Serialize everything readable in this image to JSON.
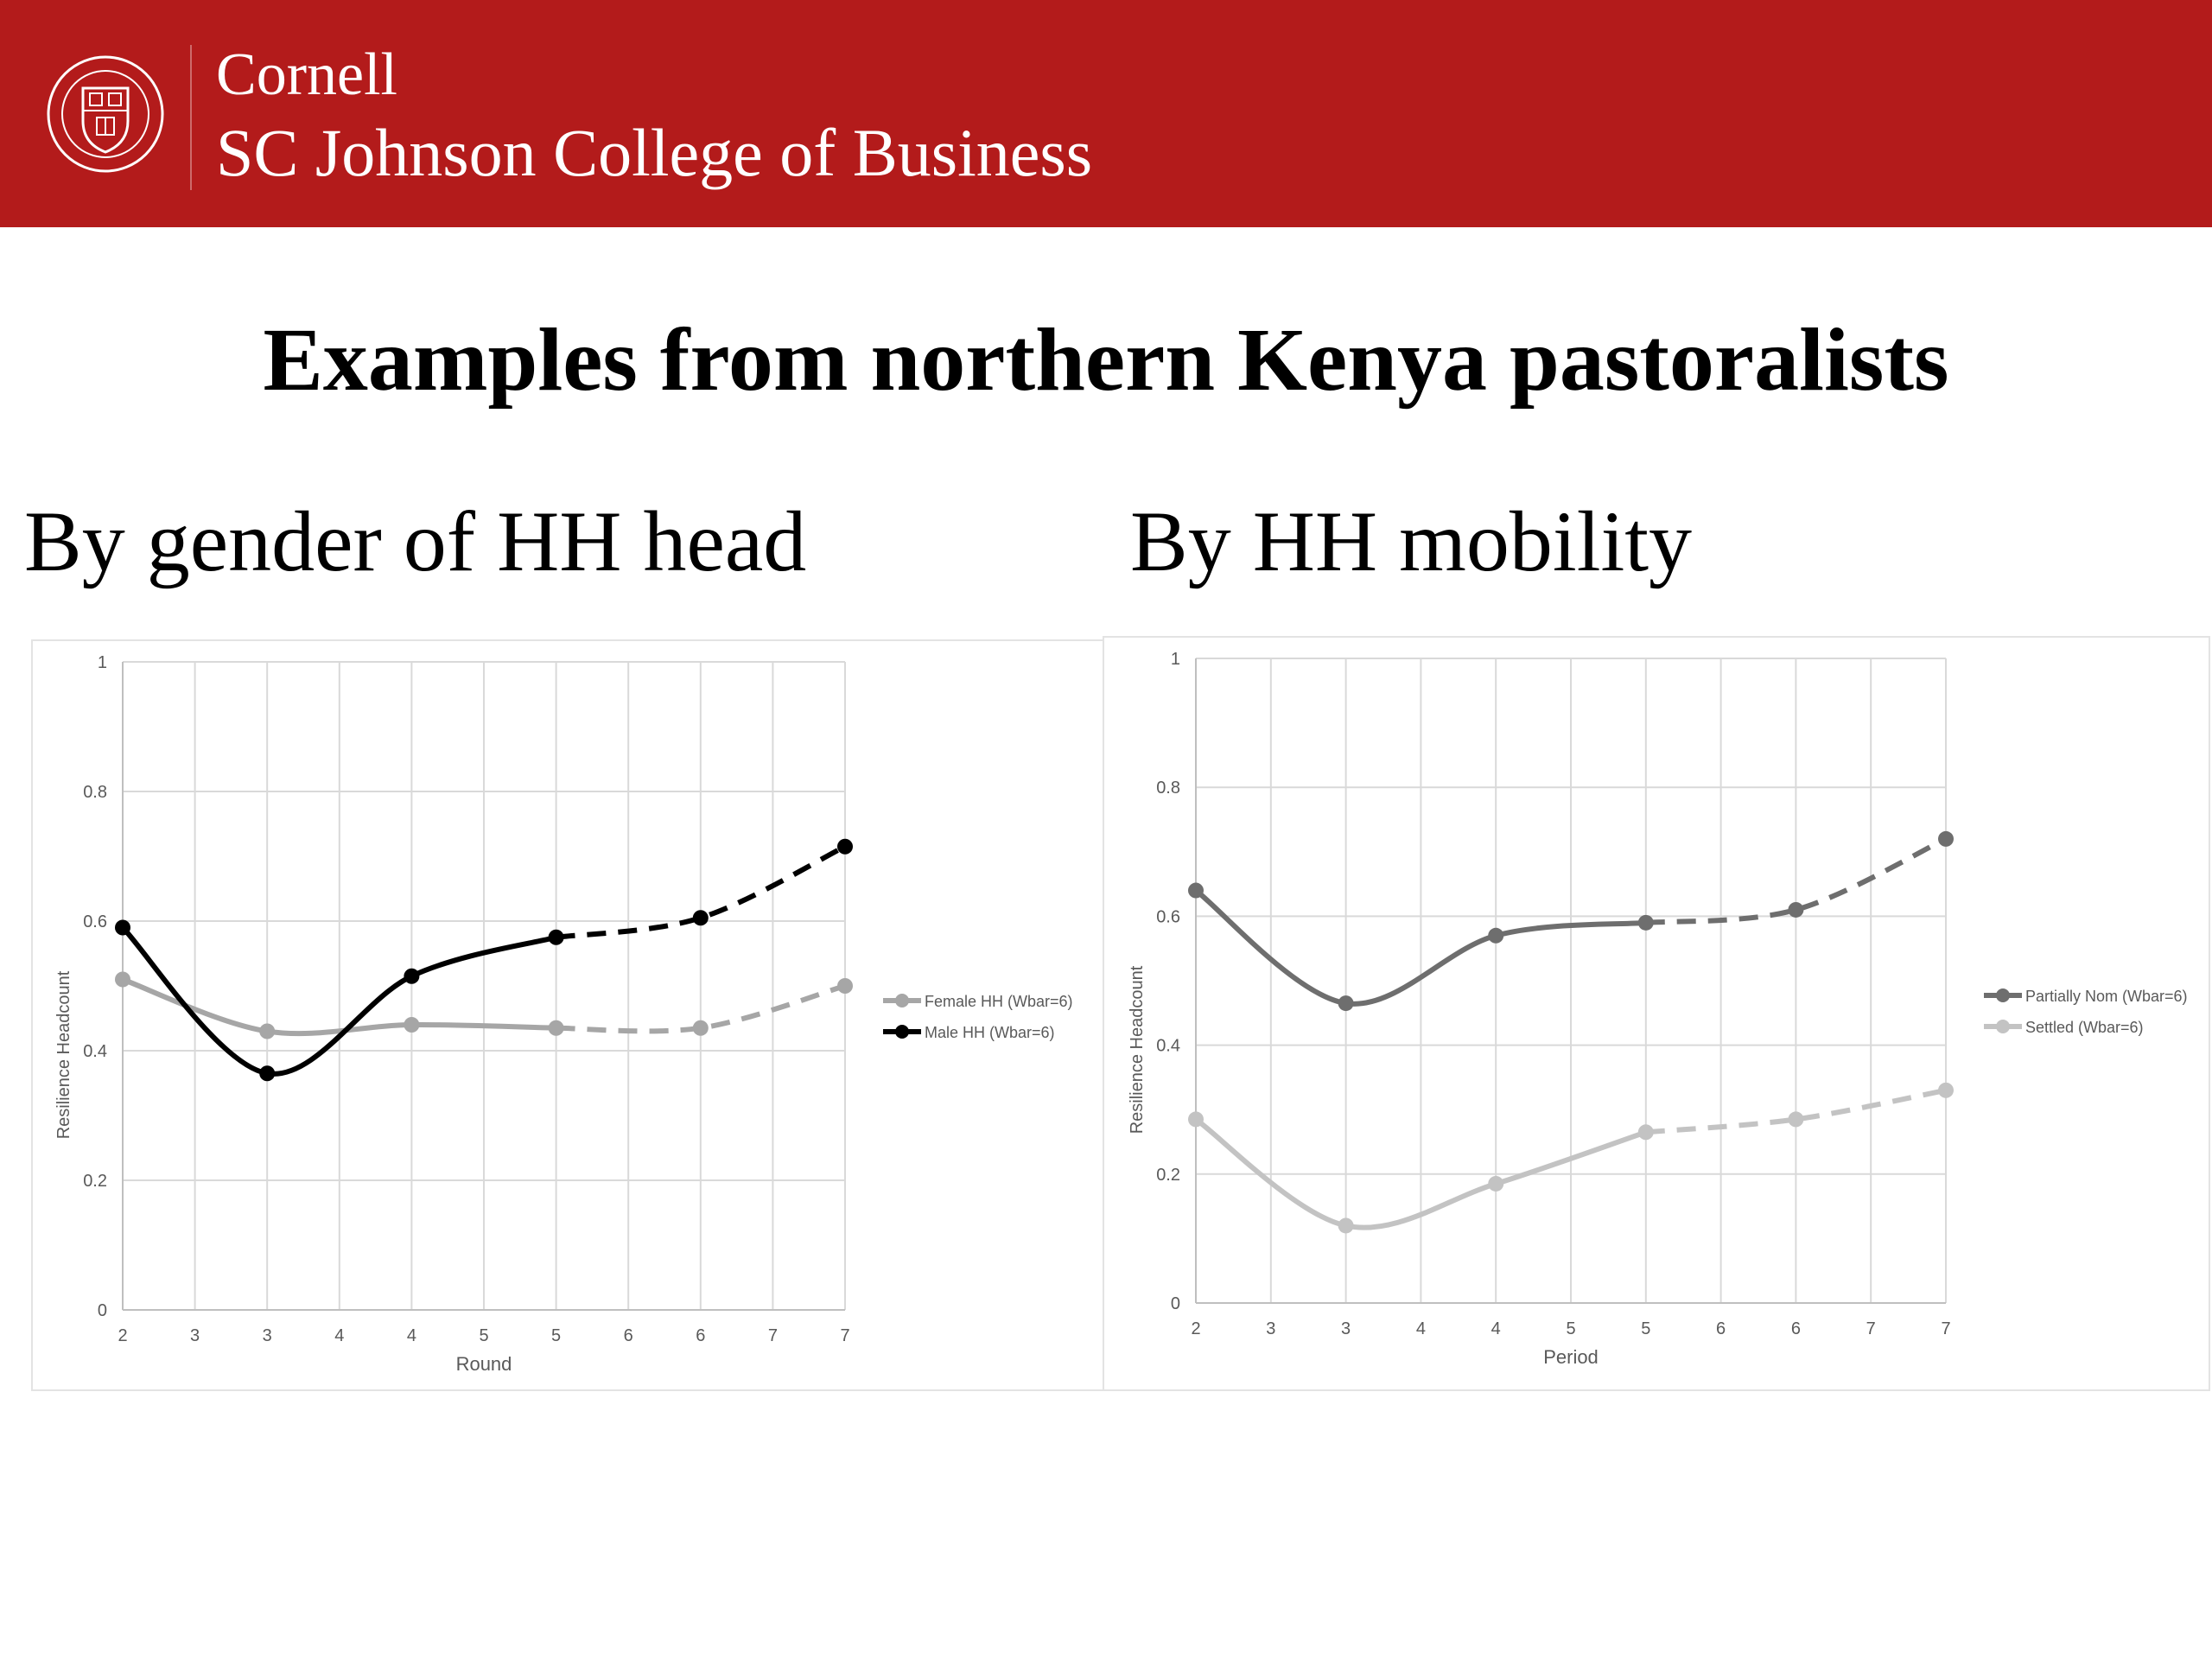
{
  "header": {
    "brand_line1": "Cornell",
    "brand_line2": "SC Johnson College of Business",
    "seal_icon": "cornell-seal-icon",
    "color": "#b31b1b"
  },
  "slide": {
    "title": "Examples from northern Kenya pastoralists",
    "left_heading": "By gender of HH head",
    "right_heading": "By HH mobility"
  },
  "chart_data": [
    {
      "type": "line",
      "xlabel": "Round",
      "ylabel": "Resilience Headcount",
      "x_ticks": [
        "2",
        "3",
        "3",
        "4",
        "4",
        "5",
        "5",
        "6",
        "6",
        "7",
        "7"
      ],
      "y_ticks": [
        "0",
        "0.2",
        "0.4",
        "0.6",
        "0.8",
        "1"
      ],
      "ylim": [
        0,
        1
      ],
      "grid": true,
      "legend": "right",
      "series": [
        {
          "name": "Female HH (Wbar=6)",
          "color": "#a6a6a6",
          "points": [
            [
              0,
              0.51
            ],
            [
              2,
              0.43
            ],
            [
              4,
              0.44
            ],
            [
              6,
              0.435
            ],
            [
              8,
              0.435
            ],
            [
              10,
              0.5
            ]
          ],
          "dashed_from_index": 3
        },
        {
          "name": "Male HH (Wbar=6)",
          "color": "#000000",
          "points": [
            [
              0,
              0.59
            ],
            [
              2,
              0.365
            ],
            [
              4,
              0.515
            ],
            [
              6,
              0.575
            ],
            [
              8,
              0.605
            ],
            [
              10,
              0.715
            ]
          ],
          "dashed_from_index": 3
        }
      ]
    },
    {
      "type": "line",
      "xlabel": "Period",
      "ylabel": "Resilience Headcount",
      "x_ticks": [
        "2",
        "3",
        "3",
        "4",
        "4",
        "5",
        "5",
        "6",
        "6",
        "7",
        "7"
      ],
      "y_ticks": [
        "0",
        "0.2",
        "0.4",
        "0.6",
        "0.8",
        "1"
      ],
      "ylim": [
        0,
        1
      ],
      "grid": true,
      "legend": "right",
      "series": [
        {
          "name": "Partially Nom (Wbar=6)",
          "color": "#6e6e6e",
          "points": [
            [
              0,
              0.64
            ],
            [
              2,
              0.465
            ],
            [
              4,
              0.57
            ],
            [
              6,
              0.59
            ],
            [
              8,
              0.61
            ],
            [
              10,
              0.72
            ]
          ],
          "dashed_from_index": 3
        },
        {
          "name": "Settled (Wbar=6)",
          "color": "#c3c3c3",
          "points": [
            [
              0,
              0.285
            ],
            [
              2,
              0.12
            ],
            [
              4,
              0.185
            ],
            [
              6,
              0.265
            ],
            [
              8,
              0.285
            ],
            [
              10,
              0.33
            ]
          ],
          "dashed_from_index": 3
        }
      ]
    }
  ]
}
